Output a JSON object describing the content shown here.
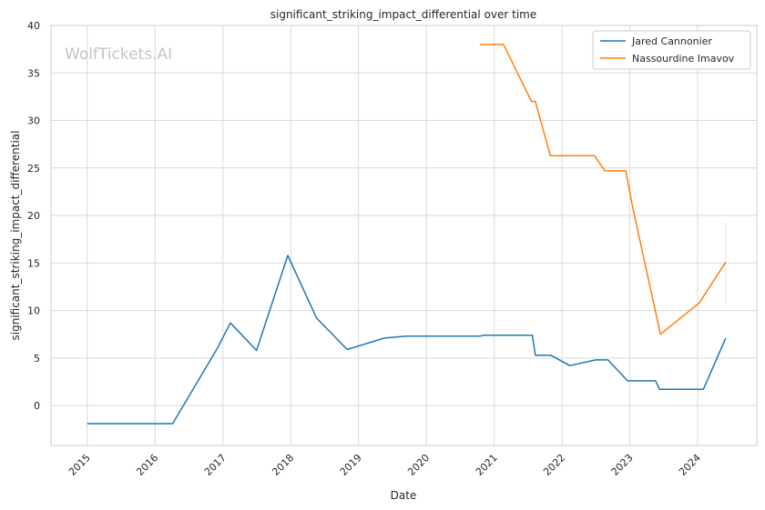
{
  "chart_data": {
    "type": "line",
    "title": "significant_striking_impact_differential over time",
    "xlabel": "Date",
    "ylabel": "significant_striking_impact_differential",
    "watermark": "WolfTickets.AI",
    "x_ticks": [
      "2015",
      "2016",
      "2017",
      "2018",
      "2019",
      "2020",
      "2021",
      "2022",
      "2023",
      "2024"
    ],
    "xlim": [
      "2014-06-20",
      "2024-11-15"
    ],
    "ylim": [
      -4.2,
      40
    ],
    "y_ticks": [
      0,
      5,
      10,
      15,
      20,
      25,
      30,
      35,
      40
    ],
    "grid": true,
    "legend_position": "top-right",
    "series": [
      {
        "name": "Jared Cannonier",
        "color": "#1f77b4",
        "points": [
          [
            "2015-01-01",
            -1.9
          ],
          [
            "2016-04-05",
            -1.9
          ],
          [
            "2016-12-01",
            6.0
          ],
          [
            "2017-02-10",
            8.7
          ],
          [
            "2017-07-01",
            5.8
          ],
          [
            "2017-12-16",
            15.8
          ],
          [
            "2018-05-20",
            9.2
          ],
          [
            "2018-11-01",
            5.9
          ],
          [
            "2019-05-20",
            7.1
          ],
          [
            "2019-09-15",
            7.3
          ],
          [
            "2020-10-15",
            7.3
          ],
          [
            "2020-11-01",
            7.4
          ],
          [
            "2021-07-25",
            7.4
          ],
          [
            "2021-08-10",
            5.3
          ],
          [
            "2021-11-01",
            5.3
          ],
          [
            "2022-02-12",
            4.2
          ],
          [
            "2022-07-01",
            4.8
          ],
          [
            "2022-09-05",
            4.8
          ],
          [
            "2022-12-20",
            2.6
          ],
          [
            "2023-05-20",
            2.6
          ],
          [
            "2023-06-10",
            1.7
          ],
          [
            "2024-02-01",
            1.7
          ],
          [
            "2024-06-01",
            7.1
          ]
        ]
      },
      {
        "name": "Nassourdine Imavov",
        "color": "#ff7f0e",
        "points": [
          [
            "2020-10-15",
            38.0
          ],
          [
            "2021-02-20",
            38.0
          ],
          [
            "2021-07-20",
            32.0
          ],
          [
            "2021-08-10",
            32.0
          ],
          [
            "2021-10-30",
            26.3
          ],
          [
            "2022-06-25",
            26.3
          ],
          [
            "2022-08-20",
            24.7
          ],
          [
            "2022-12-10",
            24.7
          ],
          [
            "2023-01-15",
            21.0
          ],
          [
            "2023-06-15",
            7.5
          ],
          [
            "2024-01-10",
            10.8
          ],
          [
            "2024-06-01",
            15.1
          ]
        ],
        "error_band": {
          "x": "2024-06-01",
          "low": 10.8,
          "high": 19.3
        }
      }
    ]
  }
}
